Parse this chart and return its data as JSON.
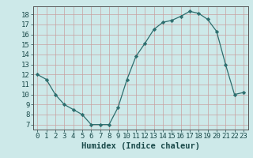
{
  "x": [
    0,
    1,
    2,
    3,
    4,
    5,
    6,
    7,
    8,
    9,
    10,
    11,
    12,
    13,
    14,
    15,
    16,
    17,
    18,
    19,
    20,
    21,
    22,
    23
  ],
  "y": [
    12,
    11.5,
    10,
    9,
    8.5,
    8,
    7,
    7,
    7,
    8.7,
    11.5,
    13.8,
    15.1,
    16.5,
    17.2,
    17.4,
    17.8,
    18.3,
    18.1,
    17.5,
    16.3,
    13,
    10,
    10.2
  ],
  "line_color": "#2d6e6e",
  "marker": "D",
  "marker_size": 2.2,
  "background_color": "#cde9e9",
  "grid_color": "#c8a0a0",
  "xlabel": "Humidex (Indice chaleur)",
  "xlim": [
    -0.5,
    23.5
  ],
  "ylim": [
    6.5,
    18.8
  ],
  "yticks": [
    7,
    8,
    9,
    10,
    11,
    12,
    13,
    14,
    15,
    16,
    17,
    18
  ],
  "xticks": [
    0,
    1,
    2,
    3,
    4,
    5,
    6,
    7,
    8,
    9,
    10,
    11,
    12,
    13,
    14,
    15,
    16,
    17,
    18,
    19,
    20,
    21,
    22,
    23
  ],
  "tick_label_fontsize": 6.5,
  "xlabel_fontsize": 7.5
}
